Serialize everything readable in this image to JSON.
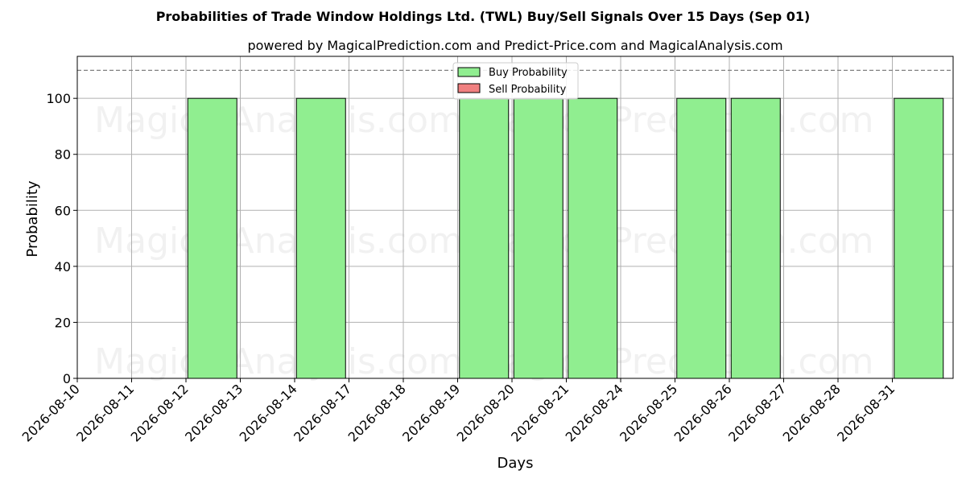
{
  "chart_data": {
    "type": "bar",
    "title": "Probabilities of Trade Window Holdings Ltd. (TWL) Buy/Sell Signals Over 15 Days (Sep 01)",
    "subtitle": "powered by MagicalPrediction.com and Predict-Price.com and MagicalAnalysis.com",
    "xlabel": "Days",
    "ylabel": "Probability",
    "ylim": [
      0,
      115
    ],
    "yticks": [
      0,
      20,
      40,
      60,
      80,
      100
    ],
    "threshold": 110,
    "grid": true,
    "legend_position": "top-center",
    "categories": [
      "2026-08-10",
      "2026-08-11",
      "2026-08-12",
      "2026-08-13",
      "2026-08-14",
      "2026-08-17",
      "2026-08-18",
      "2026-08-19",
      "2026-08-20",
      "2026-08-21",
      "2026-08-24",
      "2026-08-25",
      "2026-08-26",
      "2026-08-27",
      "2026-08-28",
      "2026-08-31"
    ],
    "bars": [
      {
        "date": "2026-08-12",
        "value": 100
      },
      {
        "date": "2026-08-14",
        "value": 100
      },
      {
        "date": "2026-08-19",
        "value": 100
      },
      {
        "date": "2026-08-20",
        "value": 100
      },
      {
        "date": "2026-08-21",
        "value": 100
      },
      {
        "date": "2026-08-25",
        "value": 100
      },
      {
        "date": "2026-08-26",
        "value": 100
      },
      {
        "date": "2026-08-31",
        "value": 100
      }
    ],
    "series": [
      {
        "name": "Buy Probability",
        "color": "#90ee90"
      },
      {
        "name": "Sell Probability",
        "color": "#f08080"
      }
    ],
    "watermarks": [
      "MagicalAnalysis.com",
      "MagicalPrediction.com"
    ]
  }
}
